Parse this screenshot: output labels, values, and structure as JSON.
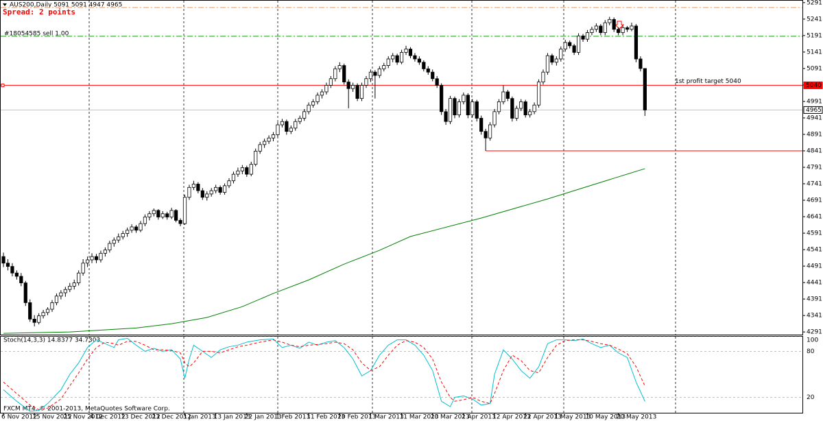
{
  "chart_data": [
    {
      "type": "candlestick",
      "title": "AUS200,Daily  5091 5091 4947 4965",
      "spread_label": "Spread: 2 points",
      "xlim": [
        -0.78,
        180.6
      ],
      "ylim": [
        4283,
        5299
      ],
      "yticks": [
        4291,
        4341,
        4391,
        4441,
        4491,
        4541,
        4591,
        4641,
        4691,
        4741,
        4791,
        4841,
        4891,
        4941,
        4991,
        5041,
        5091,
        5141,
        5191,
        5241,
        5291
      ],
      "xticks": [
        {
          "value": 0,
          "label": "6 Nov 2012"
        },
        {
          "value": 7,
          "label": "15 Nov 2012"
        },
        {
          "value": 14,
          "label": "25 Nov 2012"
        },
        {
          "value": 20,
          "label": "4 Dec 2012"
        },
        {
          "value": 27,
          "label": "13 Dec 2012"
        },
        {
          "value": 34,
          "label": "23 Dec 2012"
        },
        {
          "value": 41,
          "label": "3 Jan 2013"
        },
        {
          "value": 48,
          "label": "13 Jan 2013"
        },
        {
          "value": 55,
          "label": "22 Jan 2013"
        },
        {
          "value": 62,
          "label": "1 Feb 2013"
        },
        {
          "value": 69,
          "label": "11 Feb 2013"
        },
        {
          "value": 76,
          "label": "20 Feb 2013"
        },
        {
          "value": 83,
          "label": "1 Mar 2013"
        },
        {
          "value": 90,
          "label": "11 Mar 2013"
        },
        {
          "value": 97,
          "label": "20 Mar 2013"
        },
        {
          "value": 104,
          "label": "2 Apr 2013"
        },
        {
          "value": 111,
          "label": "12 Apr 2013"
        },
        {
          "value": 118,
          "label": "22 Apr 2013"
        },
        {
          "value": 125,
          "label": "1 May 2013"
        },
        {
          "value": 132,
          "label": "10 May 2013"
        },
        {
          "value": 139,
          "label": "20 May 2013"
        }
      ],
      "bull_color": "#ffffff",
      "bear_color": "#000000",
      "ohlc": [
        [
          4520,
          4532,
          4488,
          4500
        ],
        [
          4500,
          4512,
          4478,
          4490
        ],
        [
          4490,
          4500,
          4460,
          4470
        ],
        [
          4470,
          4478,
          4450,
          4460
        ],
        [
          4460,
          4470,
          4430,
          4440
        ],
        [
          4440,
          4446,
          4370,
          4380
        ],
        [
          4380,
          4390,
          4322,
          4330
        ],
        [
          4330,
          4342,
          4308,
          4320
        ],
        [
          4320,
          4348,
          4314,
          4340
        ],
        [
          4340,
          4358,
          4332,
          4350
        ],
        [
          4350,
          4366,
          4342,
          4360
        ],
        [
          4360,
          4388,
          4352,
          4380
        ],
        [
          4380,
          4408,
          4372,
          4400
        ],
        [
          4400,
          4418,
          4390,
          4410
        ],
        [
          4410,
          4428,
          4398,
          4420
        ],
        [
          4420,
          4440,
          4412,
          4430
        ],
        [
          4430,
          4450,
          4420,
          4440
        ],
        [
          4440,
          4478,
          4432,
          4470
        ],
        [
          4470,
          4512,
          4462,
          4500
        ],
        [
          4500,
          4520,
          4488,
          4510
        ],
        [
          4510,
          4530,
          4500,
          4520
        ],
        [
          4520,
          4528,
          4500,
          4510
        ],
        [
          4510,
          4538,
          4502,
          4530
        ],
        [
          4530,
          4548,
          4520,
          4540
        ],
        [
          4540,
          4568,
          4532,
          4560
        ],
        [
          4560,
          4578,
          4550,
          4570
        ],
        [
          4570,
          4590,
          4562,
          4580
        ],
        [
          4580,
          4598,
          4572,
          4590
        ],
        [
          4590,
          4608,
          4580,
          4600
        ],
        [
          4600,
          4618,
          4592,
          4610
        ],
        [
          4610,
          4616,
          4592,
          4600
        ],
        [
          4600,
          4628,
          4594,
          4620
        ],
        [
          4620,
          4648,
          4612,
          4640
        ],
        [
          4640,
          4658,
          4630,
          4650
        ],
        [
          4650,
          4666,
          4642,
          4660
        ],
        [
          4660,
          4664,
          4632,
          4640
        ],
        [
          4640,
          4658,
          4634,
          4650
        ],
        [
          4650,
          4656,
          4632,
          4640
        ],
        [
          4640,
          4668,
          4634,
          4660
        ],
        [
          4660,
          4664,
          4624,
          4630
        ],
        [
          4630,
          4636,
          4612,
          4620
        ],
        [
          4620,
          4708,
          4616,
          4700
        ],
        [
          4700,
          4738,
          4692,
          4730
        ],
        [
          4730,
          4750,
          4722,
          4740
        ],
        [
          4740,
          4746,
          4712,
          4720
        ],
        [
          4720,
          4728,
          4692,
          4700
        ],
        [
          4700,
          4718,
          4690,
          4710
        ],
        [
          4710,
          4728,
          4702,
          4720
        ],
        [
          4720,
          4738,
          4712,
          4730
        ],
        [
          4730,
          4736,
          4708,
          4715
        ],
        [
          4715,
          4742,
          4708,
          4735
        ],
        [
          4735,
          4758,
          4728,
          4750
        ],
        [
          4750,
          4778,
          4742,
          4770
        ],
        [
          4770,
          4790,
          4762,
          4780
        ],
        [
          4780,
          4798,
          4770,
          4790
        ],
        [
          4790,
          4796,
          4762,
          4770
        ],
        [
          4770,
          4808,
          4764,
          4800
        ],
        [
          4800,
          4848,
          4794,
          4840
        ],
        [
          4840,
          4868,
          4832,
          4860
        ],
        [
          4860,
          4878,
          4850,
          4870
        ],
        [
          4870,
          4888,
          4862,
          4880
        ],
        [
          4880,
          4898,
          4870,
          4890
        ],
        [
          4890,
          4928,
          4882,
          4920
        ],
        [
          4920,
          4938,
          4912,
          4930
        ],
        [
          4930,
          4936,
          4890,
          4900
        ],
        [
          4900,
          4918,
          4892,
          4910
        ],
        [
          4910,
          4938,
          4902,
          4930
        ],
        [
          4930,
          4948,
          4922,
          4940
        ],
        [
          4940,
          4968,
          4932,
          4960
        ],
        [
          4960,
          4988,
          4952,
          4980
        ],
        [
          4980,
          4998,
          4972,
          4990
        ],
        [
          4990,
          5018,
          4982,
          5010
        ],
        [
          5010,
          5028,
          5000,
          5020
        ],
        [
          5020,
          5048,
          5012,
          5040
        ],
        [
          5040,
          5068,
          5032,
          5060
        ],
        [
          5060,
          5098,
          5052,
          5090
        ],
        [
          5090,
          5110,
          5080,
          5100
        ],
        [
          5100,
          5106,
          5042,
          5050
        ],
        [
          5050,
          5058,
          4970,
          5030
        ],
        [
          5030,
          5048,
          5020,
          5040
        ],
        [
          5040,
          5046,
          4992,
          5000
        ],
        [
          5000,
          5048,
          4992,
          5040
        ],
        [
          5040,
          5068,
          5032,
          5060
        ],
        [
          5060,
          5088,
          5050,
          5080
        ],
        [
          5080,
          5086,
          5000,
          5070
        ],
        [
          5070,
          5098,
          5062,
          5090
        ],
        [
          5090,
          5108,
          5082,
          5100
        ],
        [
          5100,
          5128,
          5092,
          5120
        ],
        [
          5120,
          5138,
          5110,
          5130
        ],
        [
          5130,
          5136,
          5102,
          5110
        ],
        [
          5110,
          5148,
          5104,
          5140
        ],
        [
          5140,
          5160,
          5132,
          5150
        ],
        [
          5150,
          5156,
          5122,
          5130
        ],
        [
          5130,
          5138,
          5112,
          5120
        ],
        [
          5120,
          5128,
          5102,
          5110
        ],
        [
          5110,
          5116,
          5082,
          5090
        ],
        [
          5090,
          5098,
          5072,
          5080
        ],
        [
          5080,
          5088,
          5052,
          5060
        ],
        [
          5060,
          5068,
          5032,
          5040
        ],
        [
          5040,
          5046,
          4950,
          4960
        ],
        [
          4960,
          4968,
          4920,
          4930
        ],
        [
          4930,
          5008,
          4922,
          5000
        ],
        [
          5000,
          5006,
          4940,
          4950
        ],
        [
          4950,
          4998,
          4942,
          4990
        ],
        [
          4990,
          5018,
          4982,
          5010
        ],
        [
          5010,
          5016,
          4940,
          4950
        ],
        [
          4950,
          4998,
          4942,
          4990
        ],
        [
          4990,
          4996,
          4930,
          4940
        ],
        [
          4940,
          4948,
          4890,
          4900
        ],
        [
          4900,
          4908,
          4841,
          4880
        ],
        [
          4880,
          4928,
          4872,
          4920
        ],
        [
          4920,
          4968,
          4912,
          4960
        ],
        [
          4960,
          4998,
          4952,
          4990
        ],
        [
          4990,
          5040,
          4982,
          5020
        ],
        [
          5020,
          5026,
          4992,
          5000
        ],
        [
          5000,
          5006,
          4930,
          4940
        ],
        [
          4940,
          4978,
          4932,
          4970
        ],
        [
          4970,
          4998,
          4962,
          4990
        ],
        [
          4990,
          4996,
          4942,
          4950
        ],
        [
          4950,
          4968,
          4942,
          4960
        ],
        [
          4960,
          4988,
          4952,
          4980
        ],
        [
          4980,
          5058,
          4972,
          5050
        ],
        [
          5050,
          5088,
          5042,
          5080
        ],
        [
          5080,
          5138,
          5072,
          5130
        ],
        [
          5130,
          5136,
          5102,
          5110
        ],
        [
          5110,
          5128,
          5100,
          5120
        ],
        [
          5120,
          5158,
          5112,
          5150
        ],
        [
          5150,
          5178,
          5142,
          5170
        ],
        [
          5170,
          5176,
          5152,
          5160
        ],
        [
          5160,
          5166,
          5132,
          5140
        ],
        [
          5140,
          5198,
          5132,
          5190
        ],
        [
          5190,
          5196,
          5172,
          5180
        ],
        [
          5180,
          5208,
          5172,
          5200
        ],
        [
          5200,
          5218,
          5192,
          5210
        ],
        [
          5210,
          5228,
          5202,
          5220
        ],
        [
          5220,
          5226,
          5192,
          5200
        ],
        [
          5200,
          5238,
          5192,
          5230
        ],
        [
          5230,
          5248,
          5222,
          5240
        ],
        [
          5240,
          5246,
          5202,
          5210
        ],
        [
          5210,
          5216,
          5192,
          5200
        ],
        [
          5200,
          5222,
          5192,
          5215
        ],
        [
          5215,
          5220,
          5202,
          5210
        ],
        [
          5210,
          5230,
          5204,
          5220
        ],
        [
          5220,
          5226,
          5110,
          5120
        ],
        [
          5120,
          5128,
          5082,
          5091
        ],
        [
          5091,
          5091,
          4947,
          4965
        ]
      ],
      "moving_average": {
        "color": "#008000",
        "x": [
          0,
          15,
          30,
          38,
          46,
          54,
          61,
          69,
          77,
          85,
          92,
          108,
          123,
          139,
          145
        ],
        "values": [
          4287,
          4291,
          4303,
          4316,
          4335,
          4368,
          4408,
          4449,
          4497,
          4539,
          4581,
          4637,
          4695,
          4762,
          4787
        ]
      },
      "levels": [
        {
          "value": 5276,
          "color": "#ff8c40",
          "style": "dash-dot"
        },
        {
          "value": 5189,
          "color": "#00a000",
          "style": "dash-dot",
          "label": "#18054585 sell 1.00"
        },
        {
          "value": 5040,
          "color": "#ff0000",
          "style": "solid",
          "label": "1st profit target 5040",
          "tag": true
        },
        {
          "value": 4965,
          "color": "#c0c0c0",
          "style": "solid",
          "tag": true
        }
      ],
      "support": {
        "value": 4841,
        "from": 109,
        "color": "#ff0000"
      }
    },
    {
      "type": "line",
      "title": "Stoch(14,3,3) 14.8377 34.7303",
      "xlim": [
        -0.78,
        180.6
      ],
      "ylim": [
        0,
        100
      ],
      "yticks": [
        20,
        80,
        100
      ],
      "x": [
        0,
        3,
        6,
        8,
        10,
        13,
        15,
        17,
        19,
        21,
        23,
        25,
        26,
        28,
        30,
        32,
        34,
        36,
        38,
        40,
        41,
        42,
        43,
        45,
        47,
        49,
        51,
        53,
        55,
        58,
        61,
        63,
        65,
        67,
        69,
        71,
        73,
        75,
        77,
        79,
        81,
        83,
        85,
        87,
        89,
        91,
        93,
        95,
        97,
        99,
        101,
        102,
        104,
        106,
        108,
        110,
        111,
        113,
        115,
        117,
        119,
        121,
        123,
        125,
        127,
        129,
        131,
        133,
        135,
        137,
        139,
        141,
        143,
        145
      ],
      "series": [
        {
          "color": "#00c0d0",
          "style": "solid",
          "values": [
            30,
            15,
            2,
            3,
            12,
            30,
            50,
            65,
            85,
            95,
            90,
            85,
            95,
            97,
            88,
            80,
            84,
            80,
            82,
            70,
            45,
            70,
            88,
            80,
            72,
            82,
            86,
            88,
            92,
            95,
            96,
            85,
            88,
            84,
            92,
            88,
            92,
            94,
            85,
            70,
            48,
            55,
            75,
            88,
            95,
            95,
            88,
            75,
            55,
            15,
            8,
            20,
            22,
            18,
            10,
            12,
            50,
            82,
            70,
            55,
            45,
            60,
            90,
            95,
            95,
            94,
            96,
            90,
            85,
            88,
            78,
            72,
            40,
            14.8377
          ]
        },
        {
          "color": "#ff0000",
          "style": "dashed",
          "values": [
            40,
            25,
            10,
            4,
            6,
            18,
            35,
            52,
            70,
            85,
            92,
            90,
            88,
            93,
            93,
            88,
            82,
            82,
            81,
            78,
            65,
            60,
            65,
            80,
            80,
            78,
            82,
            86,
            88,
            92,
            95,
            92,
            88,
            86,
            88,
            89,
            90,
            92,
            90,
            82,
            65,
            55,
            60,
            75,
            88,
            94,
            92,
            85,
            70,
            40,
            20,
            15,
            17,
            20,
            15,
            12,
            25,
            55,
            75,
            68,
            55,
            52,
            72,
            88,
            94,
            95,
            95,
            93,
            90,
            88,
            83,
            77,
            60,
            34.7303
          ]
        }
      ]
    }
  ],
  "footer": "FXCM MT4, © 2001-2013, MetaQuotes Software Corp."
}
